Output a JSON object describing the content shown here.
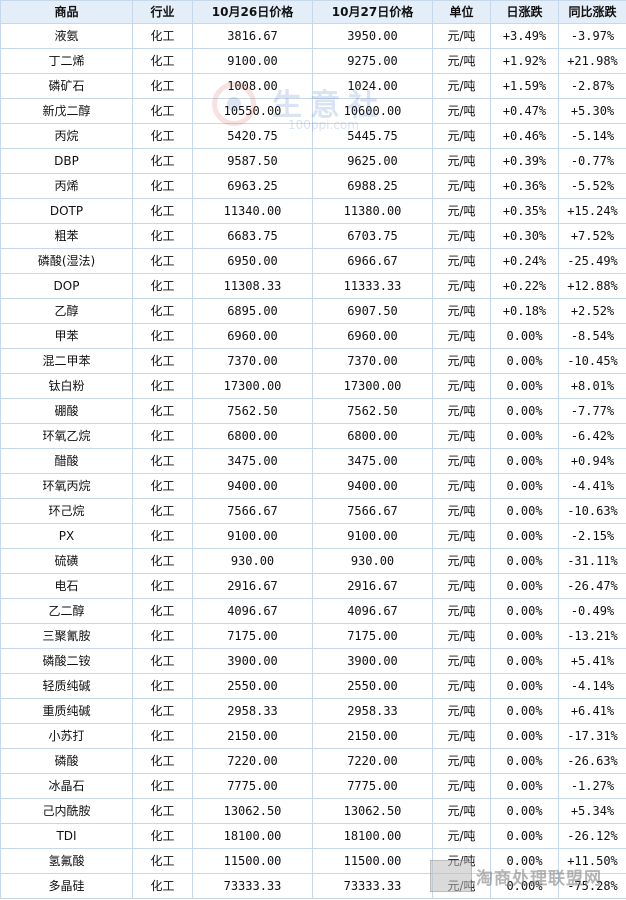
{
  "header": {
    "product": "商品",
    "industry": "行业",
    "price_oct26": "10月26日价格",
    "price_oct27": "10月27日价格",
    "unit": "单位",
    "daily_change": "日涨跌",
    "yoy_change": "同比涨跌"
  },
  "rows": [
    {
      "name": "液氨",
      "industry": "化工",
      "p26": "3816.67",
      "p27": "3950.00",
      "unit": "元/吨",
      "day": "+3.49%",
      "yoy": "-3.97%"
    },
    {
      "name": "丁二烯",
      "industry": "化工",
      "p26": "9100.00",
      "p27": "9275.00",
      "unit": "元/吨",
      "day": "+1.92%",
      "yoy": "+21.98%"
    },
    {
      "name": "磷矿石",
      "industry": "化工",
      "p26": "1008.00",
      "p27": "1024.00",
      "unit": "元/吨",
      "day": "+1.59%",
      "yoy": "-2.87%"
    },
    {
      "name": "新戊二醇",
      "industry": "化工",
      "p26": "10550.00",
      "p27": "10600.00",
      "unit": "元/吨",
      "day": "+0.47%",
      "yoy": "+5.30%"
    },
    {
      "name": "丙烷",
      "industry": "化工",
      "p26": "5420.75",
      "p27": "5445.75",
      "unit": "元/吨",
      "day": "+0.46%",
      "yoy": "-5.14%"
    },
    {
      "name": "DBP",
      "industry": "化工",
      "p26": "9587.50",
      "p27": "9625.00",
      "unit": "元/吨",
      "day": "+0.39%",
      "yoy": "-0.77%"
    },
    {
      "name": "丙烯",
      "industry": "化工",
      "p26": "6963.25",
      "p27": "6988.25",
      "unit": "元/吨",
      "day": "+0.36%",
      "yoy": "-5.52%"
    },
    {
      "name": "DOTP",
      "industry": "化工",
      "p26": "11340.00",
      "p27": "11380.00",
      "unit": "元/吨",
      "day": "+0.35%",
      "yoy": "+15.24%"
    },
    {
      "name": "粗苯",
      "industry": "化工",
      "p26": "6683.75",
      "p27": "6703.75",
      "unit": "元/吨",
      "day": "+0.30%",
      "yoy": "+7.52%"
    },
    {
      "name": "磷酸(湿法)",
      "industry": "化工",
      "p26": "6950.00",
      "p27": "6966.67",
      "unit": "元/吨",
      "day": "+0.24%",
      "yoy": "-25.49%"
    },
    {
      "name": "DOP",
      "industry": "化工",
      "p26": "11308.33",
      "p27": "11333.33",
      "unit": "元/吨",
      "day": "+0.22%",
      "yoy": "+12.88%"
    },
    {
      "name": "乙醇",
      "industry": "化工",
      "p26": "6895.00",
      "p27": "6907.50",
      "unit": "元/吨",
      "day": "+0.18%",
      "yoy": "+2.52%"
    },
    {
      "name": "甲苯",
      "industry": "化工",
      "p26": "6960.00",
      "p27": "6960.00",
      "unit": "元/吨",
      "day": "0.00%",
      "yoy": "-8.54%"
    },
    {
      "name": "混二甲苯",
      "industry": "化工",
      "p26": "7370.00",
      "p27": "7370.00",
      "unit": "元/吨",
      "day": "0.00%",
      "yoy": "-10.45%"
    },
    {
      "name": "钛白粉",
      "industry": "化工",
      "p26": "17300.00",
      "p27": "17300.00",
      "unit": "元/吨",
      "day": "0.00%",
      "yoy": "+8.01%"
    },
    {
      "name": "硼酸",
      "industry": "化工",
      "p26": "7562.50",
      "p27": "7562.50",
      "unit": "元/吨",
      "day": "0.00%",
      "yoy": "-7.77%"
    },
    {
      "name": "环氧乙烷",
      "industry": "化工",
      "p26": "6800.00",
      "p27": "6800.00",
      "unit": "元/吨",
      "day": "0.00%",
      "yoy": "-6.42%"
    },
    {
      "name": "醋酸",
      "industry": "化工",
      "p26": "3475.00",
      "p27": "3475.00",
      "unit": "元/吨",
      "day": "0.00%",
      "yoy": "+0.94%"
    },
    {
      "name": "环氧丙烷",
      "industry": "化工",
      "p26": "9400.00",
      "p27": "9400.00",
      "unit": "元/吨",
      "day": "0.00%",
      "yoy": "-4.41%"
    },
    {
      "name": "环己烷",
      "industry": "化工",
      "p26": "7566.67",
      "p27": "7566.67",
      "unit": "元/吨",
      "day": "0.00%",
      "yoy": "-10.63%"
    },
    {
      "name": "PX",
      "industry": "化工",
      "p26": "9100.00",
      "p27": "9100.00",
      "unit": "元/吨",
      "day": "0.00%",
      "yoy": "-2.15%"
    },
    {
      "name": "硫磺",
      "industry": "化工",
      "p26": "930.00",
      "p27": "930.00",
      "unit": "元/吨",
      "day": "0.00%",
      "yoy": "-31.11%"
    },
    {
      "name": "电石",
      "industry": "化工",
      "p26": "2916.67",
      "p27": "2916.67",
      "unit": "元/吨",
      "day": "0.00%",
      "yoy": "-26.47%"
    },
    {
      "name": "乙二醇",
      "industry": "化工",
      "p26": "4096.67",
      "p27": "4096.67",
      "unit": "元/吨",
      "day": "0.00%",
      "yoy": "-0.49%"
    },
    {
      "name": "三聚氰胺",
      "industry": "化工",
      "p26": "7175.00",
      "p27": "7175.00",
      "unit": "元/吨",
      "day": "0.00%",
      "yoy": "-13.21%"
    },
    {
      "name": "磷酸二铵",
      "industry": "化工",
      "p26": "3900.00",
      "p27": "3900.00",
      "unit": "元/吨",
      "day": "0.00%",
      "yoy": "+5.41%"
    },
    {
      "name": "轻质纯碱",
      "industry": "化工",
      "p26": "2550.00",
      "p27": "2550.00",
      "unit": "元/吨",
      "day": "0.00%",
      "yoy": "-4.14%"
    },
    {
      "name": "重质纯碱",
      "industry": "化工",
      "p26": "2958.33",
      "p27": "2958.33",
      "unit": "元/吨",
      "day": "0.00%",
      "yoy": "+6.41%"
    },
    {
      "name": "小苏打",
      "industry": "化工",
      "p26": "2150.00",
      "p27": "2150.00",
      "unit": "元/吨",
      "day": "0.00%",
      "yoy": "-17.31%"
    },
    {
      "name": "磷酸",
      "industry": "化工",
      "p26": "7220.00",
      "p27": "7220.00",
      "unit": "元/吨",
      "day": "0.00%",
      "yoy": "-26.63%"
    },
    {
      "name": "冰晶石",
      "industry": "化工",
      "p26": "7775.00",
      "p27": "7775.00",
      "unit": "元/吨",
      "day": "0.00%",
      "yoy": "-1.27%"
    },
    {
      "name": "己内酰胺",
      "industry": "化工",
      "p26": "13062.50",
      "p27": "13062.50",
      "unit": "元/吨",
      "day": "0.00%",
      "yoy": "+5.34%"
    },
    {
      "name": "TDI",
      "industry": "化工",
      "p26": "18100.00",
      "p27": "18100.00",
      "unit": "元/吨",
      "day": "0.00%",
      "yoy": "-26.12%"
    },
    {
      "name": "氢氟酸",
      "industry": "化工",
      "p26": "11500.00",
      "p27": "11500.00",
      "unit": "元/吨",
      "day": "0.00%",
      "yoy": "+11.50%"
    },
    {
      "name": "多晶硅",
      "industry": "化工",
      "p26": "73333.33",
      "p27": "73333.33",
      "unit": "元/吨",
      "day": "0.00%",
      "yoy": "-75.28%"
    }
  ],
  "watermark": {
    "text": "生意社",
    "url": "100ppi.com"
  },
  "corner_watermark": {
    "text": "淘商处理联盟网"
  },
  "colors": {
    "up": "#e60012",
    "down": "#009900",
    "header_bg": "#e4eef8",
    "border": "#c7d8ea",
    "link": "#1b4f9c"
  }
}
